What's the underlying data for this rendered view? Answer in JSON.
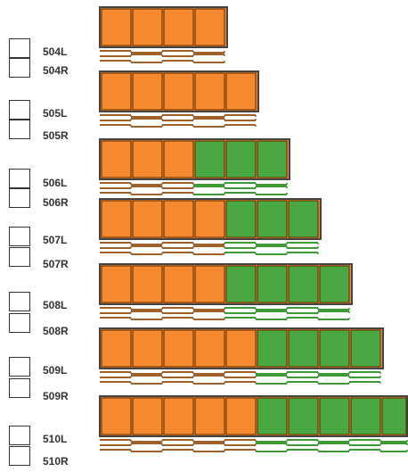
{
  "colors": {
    "orange": "#f5892f",
    "green": "#4aa842",
    "strip_border": "#444444",
    "cell_divider": "#5a2a00",
    "brown_line": "#a0602a",
    "green_line": "#3e9a37"
  },
  "rows": [
    {
      "left_label": "504L",
      "right_label": "504R",
      "orange": 4,
      "green": 0
    },
    {
      "left_label": "505L",
      "right_label": "505R",
      "orange": 5,
      "green": 0
    },
    {
      "left_label": "506L",
      "right_label": "506R",
      "orange": 3,
      "green": 3
    },
    {
      "left_label": "507L",
      "right_label": "507R",
      "orange": 4,
      "green": 3
    },
    {
      "left_label": "508L",
      "right_label": "508R",
      "orange": 4,
      "green": 4
    },
    {
      "left_label": "509L",
      "right_label": "509R",
      "orange": 5,
      "green": 4
    },
    {
      "left_label": "510L",
      "right_label": "510R",
      "orange": 5,
      "green": 5
    }
  ]
}
